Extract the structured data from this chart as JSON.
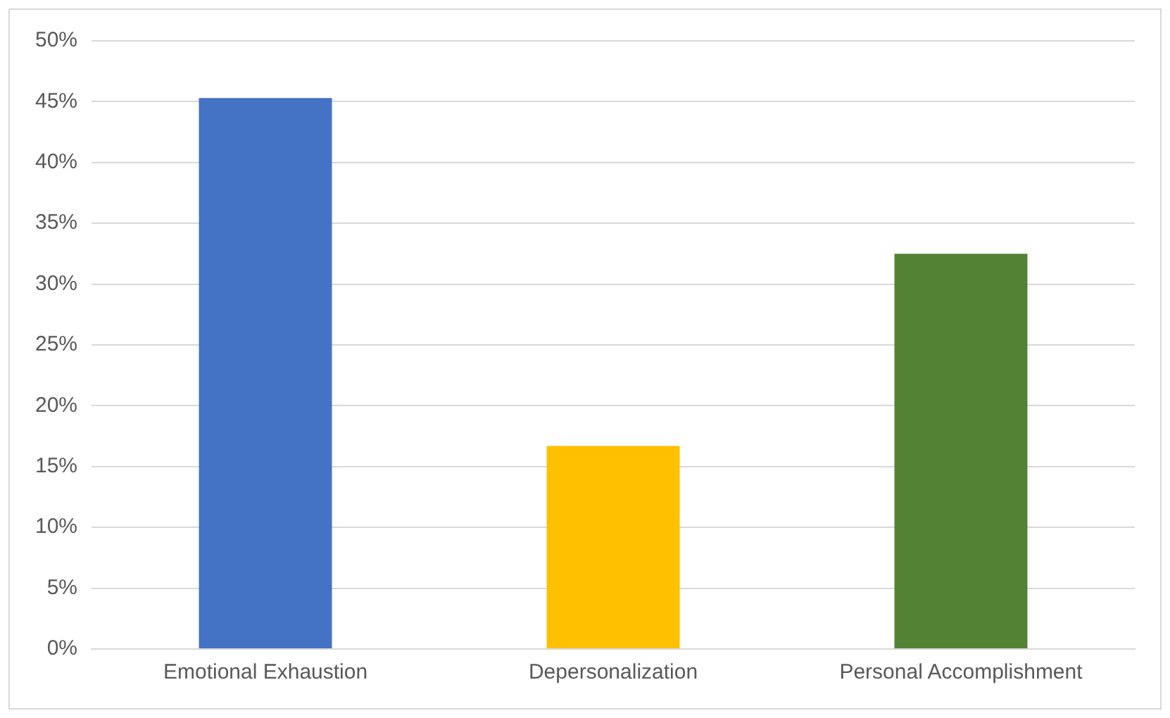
{
  "chart_data": {
    "type": "bar",
    "categories": [
      "Emotional Exhaustion",
      "Depersonalization",
      "Personal Accomplishment"
    ],
    "values": [
      45.3,
      16.7,
      32.5
    ],
    "colors": [
      "#4472c4",
      "#ffc000",
      "#548235"
    ],
    "ylim": [
      0,
      50
    ],
    "yticks": [
      {
        "value": 0,
        "label": "0%"
      },
      {
        "value": 5,
        "label": "5%"
      },
      {
        "value": 10,
        "label": "10%"
      },
      {
        "value": 15,
        "label": "15%"
      },
      {
        "value": 20,
        "label": "20%"
      },
      {
        "value": 25,
        "label": "25%"
      },
      {
        "value": 30,
        "label": "30%"
      },
      {
        "value": 35,
        "label": "35%"
      },
      {
        "value": 40,
        "label": "40%"
      },
      {
        "value": 45,
        "label": "45%"
      },
      {
        "value": 50,
        "label": "50%"
      }
    ],
    "grid": "y"
  }
}
